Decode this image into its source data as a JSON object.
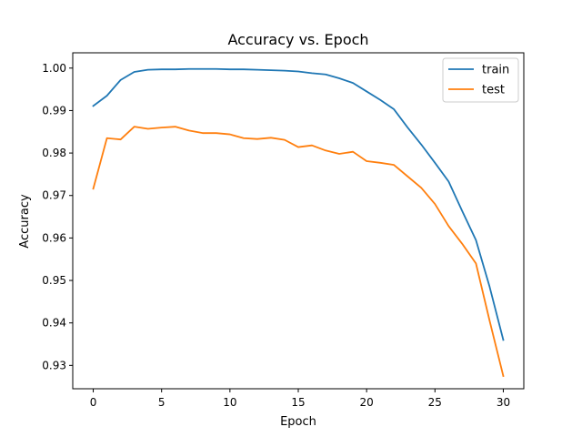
{
  "chart_data": {
    "type": "line",
    "title": "Accuracy vs. Epoch",
    "xlabel": "Epoch",
    "ylabel": "Accuracy",
    "xlim": [
      -1.5,
      31.5
    ],
    "ylim": [
      0.9245,
      1.0036
    ],
    "xticks": [
      0,
      5,
      10,
      15,
      20,
      25,
      30
    ],
    "xtick_labels": [
      "0",
      "5",
      "10",
      "15",
      "20",
      "25",
      "30"
    ],
    "yticks": [
      0.93,
      0.94,
      0.95,
      0.96,
      0.97,
      0.98,
      0.99,
      1.0
    ],
    "ytick_labels": [
      "0.93",
      "0.94",
      "0.95",
      "0.96",
      "0.97",
      "0.98",
      "0.99",
      "1.00"
    ],
    "grid": false,
    "legend_position": "top-right",
    "x": [
      0,
      1,
      2,
      3,
      4,
      5,
      6,
      7,
      8,
      9,
      10,
      11,
      12,
      13,
      14,
      15,
      16,
      17,
      18,
      19,
      20,
      21,
      22,
      23,
      24,
      25,
      26,
      27,
      28,
      29,
      30
    ],
    "series": [
      {
        "name": "train",
        "color": "#1f77b4",
        "values": [
          0.9911,
          0.9935,
          0.9972,
          0.9991,
          0.9996,
          0.9997,
          0.9997,
          0.9998,
          0.9998,
          0.9998,
          0.9997,
          0.9997,
          0.9996,
          0.9995,
          0.9994,
          0.9992,
          0.9988,
          0.9985,
          0.9976,
          0.9965,
          0.9945,
          0.9925,
          0.9903,
          0.986,
          0.982,
          0.9777,
          0.9733,
          0.9663,
          0.9595,
          0.9485,
          0.936
        ]
      },
      {
        "name": "test",
        "color": "#ff7f0e",
        "values": [
          0.9716,
          0.9835,
          0.9832,
          0.9862,
          0.9857,
          0.986,
          0.9862,
          0.9853,
          0.9847,
          0.9847,
          0.9844,
          0.9835,
          0.9833,
          0.9836,
          0.9831,
          0.9814,
          0.9818,
          0.9806,
          0.9798,
          0.9803,
          0.9781,
          0.9777,
          0.9772,
          0.9745,
          0.9718,
          0.968,
          0.9628,
          0.9586,
          0.954,
          0.9405,
          0.9275
        ]
      }
    ]
  }
}
